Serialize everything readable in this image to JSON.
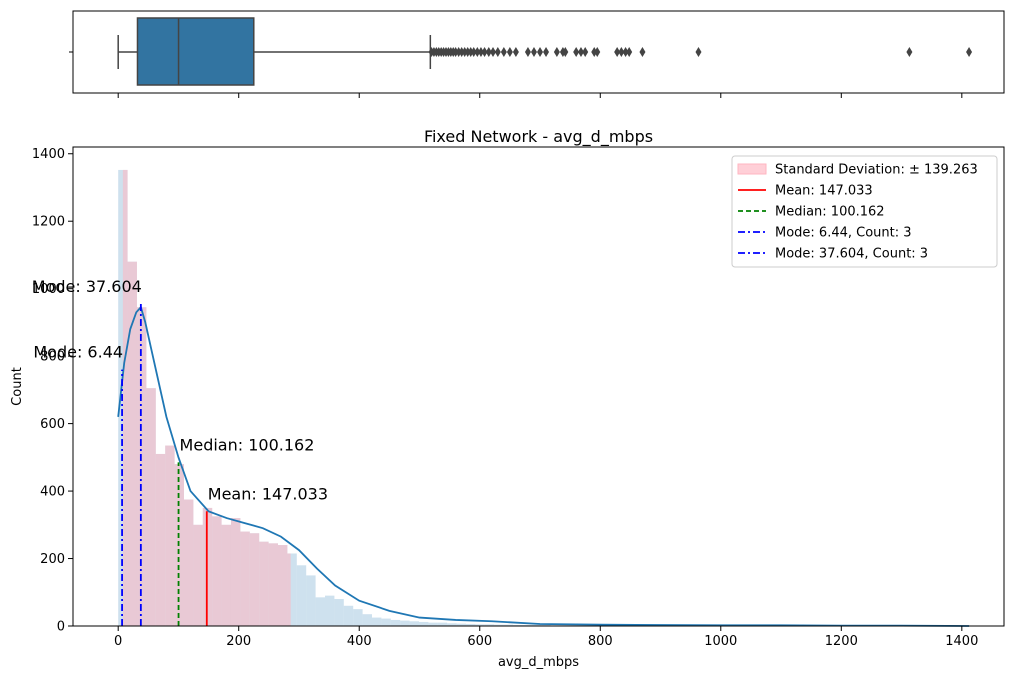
{
  "chart_data": [
    {
      "type": "box",
      "orientation": "horizontal",
      "xlim": [
        -75,
        1470
      ],
      "x_ticks": [
        0,
        200,
        400,
        600,
        800,
        1000,
        1200,
        1400
      ],
      "whisker_low": 0,
      "q1": 32,
      "median": 100.162,
      "q3": 225,
      "whisker_high": 518,
      "box_color": "#3274a1",
      "outliers": [
        520,
        524,
        528,
        532,
        536,
        540,
        544,
        548,
        552,
        556,
        560,
        565,
        570,
        575,
        580,
        585,
        590,
        596,
        602,
        608,
        615,
        622,
        630,
        640,
        650,
        660,
        680,
        690,
        700,
        710,
        728,
        738,
        742,
        760,
        768,
        775,
        790,
        795,
        828,
        835,
        842,
        848,
        870,
        963,
        1313,
        1412
      ]
    },
    {
      "type": "histogram",
      "title": "Fixed Network - avg_d_mbps",
      "xlabel": "avg_d_mbps",
      "ylabel": "Count",
      "xlim": [
        -75,
        1470
      ],
      "ylim": [
        0,
        1420
      ],
      "x_ticks": [
        0,
        200,
        400,
        600,
        800,
        1000,
        1200,
        1400
      ],
      "y_ticks": [
        0,
        200,
        400,
        600,
        800,
        1000,
        1200,
        1400
      ],
      "bin_edges": [
        0,
        15.6,
        31.2,
        46.8,
        62.4,
        78,
        93.6,
        109.2,
        124.8,
        140.4,
        156,
        171.6,
        187.2,
        202.8,
        218.4,
        234,
        249.6,
        265.2,
        280.8,
        296.4,
        312,
        327.6,
        343.2,
        358.8,
        374.4,
        390,
        405.6,
        421.2,
        436.8,
        452.4,
        468,
        483.6,
        499.2,
        514.8,
        530.4,
        546,
        561.6,
        577.2,
        592.8,
        608.4,
        624,
        639.6,
        655.2,
        670.8,
        686.4,
        702,
        717.6,
        733.2,
        748.8,
        764.4,
        780,
        795.6,
        811.2,
        826.8,
        842.4,
        858,
        873.6,
        889.2,
        904.8,
        920.4,
        936,
        951.6,
        967.2,
        982.8,
        998.4,
        1014,
        1029.6,
        1045.2,
        1060.8,
        1076.4,
        1092,
        1107.6,
        1123.2,
        1138.8,
        1154.4,
        1170,
        1185.6,
        1201.2,
        1216.8,
        1232.4,
        1248,
        1263.6,
        1279.2,
        1294.8,
        1310.4,
        1326,
        1341.6,
        1357.2,
        1372.8,
        1388.4,
        1404,
        1419.6
      ],
      "counts": [
        1352,
        1080,
        945,
        705,
        510,
        535,
        480,
        375,
        300,
        350,
        325,
        300,
        320,
        280,
        275,
        250,
        245,
        240,
        215,
        180,
        150,
        85,
        90,
        80,
        60,
        50,
        35,
        25,
        22,
        18,
        16,
        14,
        12,
        10,
        10,
        8,
        7,
        6,
        5,
        5,
        4,
        4,
        3,
        3,
        3,
        3,
        2,
        2,
        2,
        2,
        2,
        2,
        2,
        1,
        1,
        1,
        1,
        1,
        1,
        1,
        1,
        1,
        1,
        1,
        1,
        1,
        1,
        1,
        1,
        1,
        1,
        1,
        1,
        1,
        1,
        1,
        1,
        1,
        1,
        1,
        1,
        1,
        1,
        1,
        1,
        1,
        1,
        1,
        1,
        1,
        1
      ],
      "kde": {
        "x": [
          0,
          10,
          20,
          30,
          37.6,
          45,
          55,
          65,
          80,
          100,
          120,
          150,
          180,
          210,
          240,
          270,
          300,
          330,
          360,
          400,
          450,
          500,
          560,
          620,
          700,
          800,
          900,
          1000,
          1100,
          1200,
          1300,
          1412
        ],
        "y": [
          620,
          780,
          880,
          930,
          945,
          900,
          820,
          740,
          620,
          500,
          400,
          340,
          320,
          305,
          290,
          265,
          225,
          170,
          120,
          75,
          45,
          25,
          18,
          14,
          6,
          4,
          3,
          2,
          2,
          1,
          1,
          0
        ]
      },
      "std_band": {
        "from": 7.77,
        "to": 286.296
      },
      "lines": [
        {
          "name": "mean",
          "value": 147.033,
          "color": "#ff0000",
          "style": "solid",
          "label": "Mean: 147.033",
          "height": 340
        },
        {
          "name": "median",
          "value": 100.162,
          "color": "#008000",
          "style": "dashed",
          "label": "Median: 100.162",
          "height": 485
        },
        {
          "name": "mode-1",
          "value": 6.44,
          "color": "#0000ff",
          "style": "dashdot",
          "label": "Mode: 6.44",
          "height": 760
        },
        {
          "name": "mode-2",
          "value": 37.604,
          "color": "#0000ff",
          "style": "dashdot",
          "label": "Mode: 37.604",
          "height": 955
        }
      ],
      "legend": {
        "placement": "top-right",
        "entries": [
          {
            "label": "Standard Deviation: ± 139.263",
            "kind": "patch",
            "color": "#ffb6c1"
          },
          {
            "label": "Mean: 147.033",
            "kind": "solid",
            "color": "#ff0000"
          },
          {
            "label": "Median: 100.162",
            "kind": "dashed",
            "color": "#008000"
          },
          {
            "label": "Mode: 6.44, Count: 3",
            "kind": "dashdot",
            "color": "#0000ff"
          },
          {
            "label": "Mode: 37.604, Count: 3",
            "kind": "dashdot",
            "color": "#0000ff"
          }
        ]
      },
      "colors": {
        "hist": "#a6c8e0",
        "kde": "#1f77b4",
        "std_band": "#ffb6c1"
      }
    }
  ]
}
